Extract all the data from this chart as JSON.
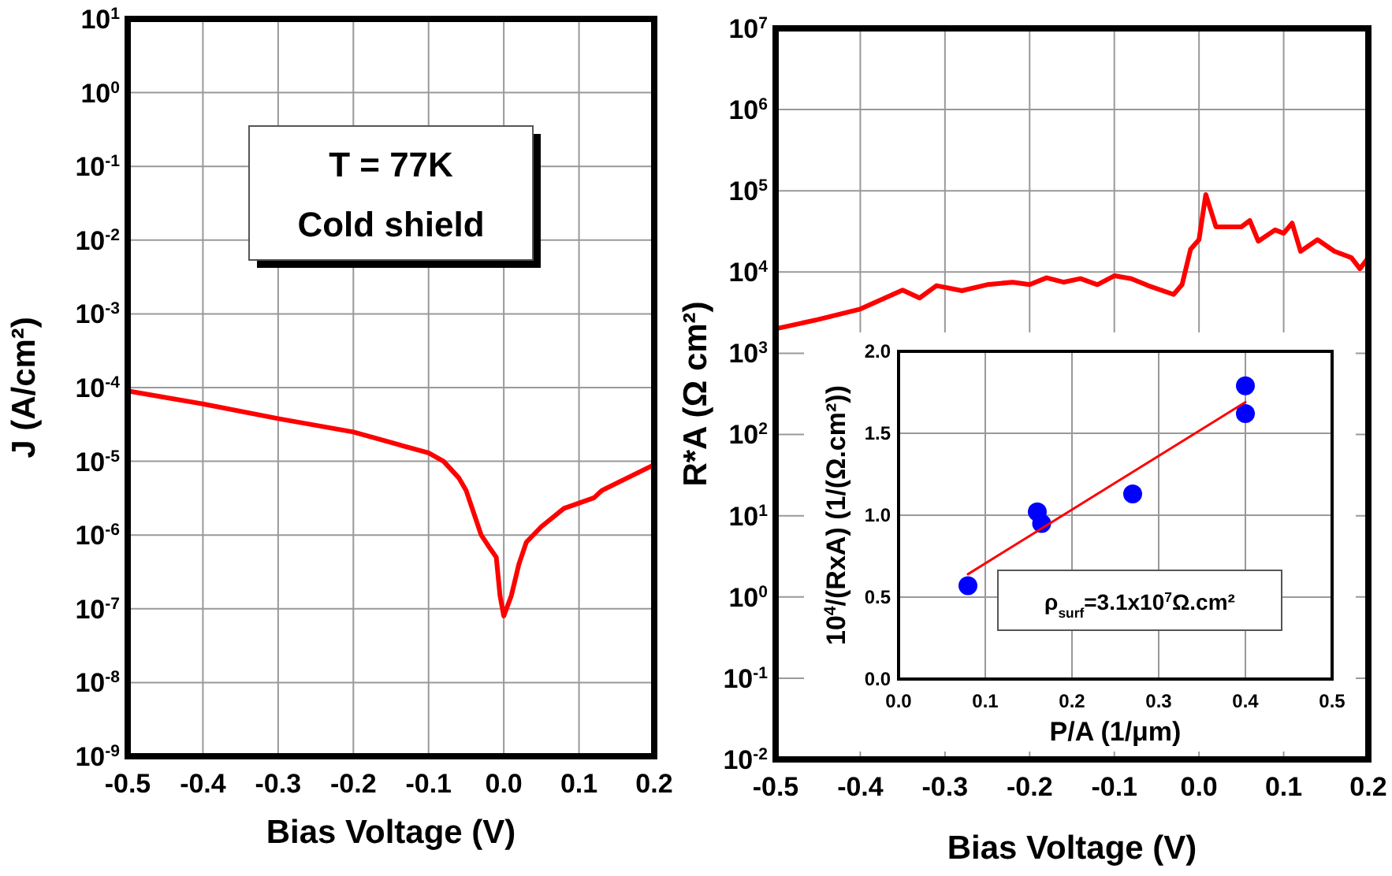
{
  "chart_data": [
    {
      "type": "line",
      "xlabel": "Bias Voltage (V)",
      "ylabel": "J (A/cm²)",
      "log": "y",
      "grid": true,
      "xlim": [
        -0.5,
        0.2
      ],
      "xticks": [
        {
          "value": -0.5,
          "label": "-0.5"
        },
        {
          "value": -0.4,
          "label": "-0.4"
        },
        {
          "value": -0.3,
          "label": "-0.3"
        },
        {
          "value": -0.2,
          "label": "-0.2"
        },
        {
          "value": -0.1,
          "label": "-0.1"
        },
        {
          "value": 0,
          "label": "0.0"
        },
        {
          "value": 0.1,
          "label": "0.1"
        },
        {
          "value": 0.2,
          "label": "0.2"
        }
      ],
      "ylim": [
        1e-09,
        10
      ],
      "yticks": [
        {
          "value": 1e-09,
          "label": "10$^{-9}$"
        },
        {
          "value": 1e-08,
          "label": "10$^{-8}$"
        },
        {
          "value": 1e-07,
          "label": "10$^{-7}$"
        },
        {
          "value": 1e-06,
          "label": "10$^{-6}$"
        },
        {
          "value": 1e-05,
          "label": "10$^{-5}$"
        },
        {
          "value": 0.0001,
          "label": "10$^{-4}$"
        },
        {
          "value": 0.001,
          "label": "10$^{-3}$"
        },
        {
          "value": 0.01,
          "label": "10$^{-2}$"
        },
        {
          "value": 0.1,
          "label": "10$^{-1}$"
        },
        {
          "value": 1,
          "label": "10$^{0}$"
        },
        {
          "value": 10,
          "label": "10$^{1}$"
        }
      ],
      "annotations": [
        "T = 77K",
        "Cold shield"
      ],
      "series": [
        {
          "color": "#ff0000",
          "x": [
            -0.5,
            -0.4,
            -0.3,
            -0.2,
            -0.15,
            -0.1,
            -0.08,
            -0.06,
            -0.05,
            -0.04,
            -0.03,
            -0.02,
            -0.01,
            -0.005,
            0,
            0.01,
            0.02,
            0.03,
            0.05,
            0.08,
            0.12,
            0.13,
            0.2
          ],
          "values": [
            9e-05,
            6e-05,
            3.8e-05,
            2.5e-05,
            1.8e-05,
            1.3e-05,
            1e-05,
            6e-06,
            4e-06,
            2e-06,
            1e-06,
            7e-07,
            5e-07,
            1.5e-07,
            8e-08,
            1.5e-07,
            4e-07,
            8e-07,
            1.3e-06,
            2.3e-06,
            3.2e-06,
            4e-06,
            9e-06
          ]
        }
      ]
    },
    {
      "type": "line",
      "xlabel": "Bias Voltage (V)",
      "ylabel": "R*A (Ω cm²)",
      "log": "y",
      "grid": true,
      "xlim": [
        -0.5,
        0.2
      ],
      "xticks": [
        {
          "value": -0.5,
          "label": "-0.5"
        },
        {
          "value": -0.4,
          "label": "-0.4"
        },
        {
          "value": -0.3,
          "label": "-0.3"
        },
        {
          "value": -0.2,
          "label": "-0.2"
        },
        {
          "value": -0.1,
          "label": "-0.1"
        },
        {
          "value": 0,
          "label": "0.0"
        },
        {
          "value": 0.1,
          "label": "0.1"
        },
        {
          "value": 0.2,
          "label": "0.2"
        }
      ],
      "ylim": [
        0.01,
        10000000.0
      ],
      "yticks": [
        {
          "value": 0.01,
          "label": "10$^{-2}$"
        },
        {
          "value": 0.1,
          "label": "10$^{-1}$"
        },
        {
          "value": 1,
          "label": "10$^{0}$"
        },
        {
          "value": 10,
          "label": "10$^{1}$"
        },
        {
          "value": 100,
          "label": "10$^{2}$"
        },
        {
          "value": 1000,
          "label": "10$^{3}$"
        },
        {
          "value": 10000,
          "label": "10$^{4}$"
        },
        {
          "value": 100000,
          "label": "10$^{5}$"
        },
        {
          "value": 1000000,
          "label": "10$^{6}$"
        },
        {
          "value": 10000000,
          "label": "10$^{7}$"
        }
      ],
      "series": [
        {
          "color": "#ff0000",
          "x": [
            -0.5,
            -0.45,
            -0.4,
            -0.35,
            -0.33,
            -0.31,
            -0.28,
            -0.25,
            -0.22,
            -0.2,
            -0.18,
            -0.16,
            -0.14,
            -0.12,
            -0.1,
            -0.08,
            -0.06,
            -0.03,
            -0.02,
            -0.01,
            0,
            0.008,
            0.02,
            0.05,
            0.06,
            0.07,
            0.09,
            0.1,
            0.11,
            0.12,
            0.14,
            0.16,
            0.18,
            0.19,
            0.2
          ],
          "values": [
            2000,
            2600,
            3500,
            6000,
            4800,
            6800,
            5900,
            7000,
            7500,
            7000,
            8500,
            7500,
            8300,
            7000,
            9000,
            8300,
            6800,
            5300,
            7000,
            19000,
            25000,
            90000,
            36000,
            36000,
            43000,
            24000,
            33000,
            30000,
            40000,
            18000,
            25000,
            18000,
            15000,
            11000,
            15000
          ]
        }
      ]
    },
    {
      "type": "scatter",
      "xlabel": "P/A (1/μm)",
      "ylabel": "10$^{4}$/(RxA) (1/(Ω.cm²))",
      "grid": true,
      "xlim": [
        0,
        0.5
      ],
      "xticks": [
        {
          "value": 0,
          "label": "0.0"
        },
        {
          "value": 0.1,
          "label": "0.1"
        },
        {
          "value": 0.2,
          "label": "0.2"
        },
        {
          "value": 0.3,
          "label": "0.3"
        },
        {
          "value": 0.4,
          "label": "0.4"
        },
        {
          "value": 0.5,
          "label": "0.5"
        }
      ],
      "ylim": [
        0,
        2
      ],
      "yticks": [
        {
          "value": 0,
          "label": "0.0"
        },
        {
          "value": 0.5,
          "label": "0.5"
        },
        {
          "value": 1,
          "label": "1.0"
        },
        {
          "value": 1.5,
          "label": "1.5"
        },
        {
          "value": 2,
          "label": "2.0"
        }
      ],
      "annotations": [
        "ρ$_{surf}$=3.1x10$^{7}$Ω.cm²"
      ],
      "series": [
        {
          "marker": "circle",
          "color": "#0000ff",
          "x": [
            0.08,
            0.16,
            0.165,
            0.27,
            0.4,
            0.4
          ],
          "values": [
            0.57,
            1.02,
            0.95,
            1.13,
            1.79,
            1.62
          ]
        },
        {
          "type": "line",
          "color": "#ff0000",
          "x": [
            0.08,
            0.4
          ],
          "values": [
            0.64,
            1.69
          ]
        }
      ]
    }
  ]
}
